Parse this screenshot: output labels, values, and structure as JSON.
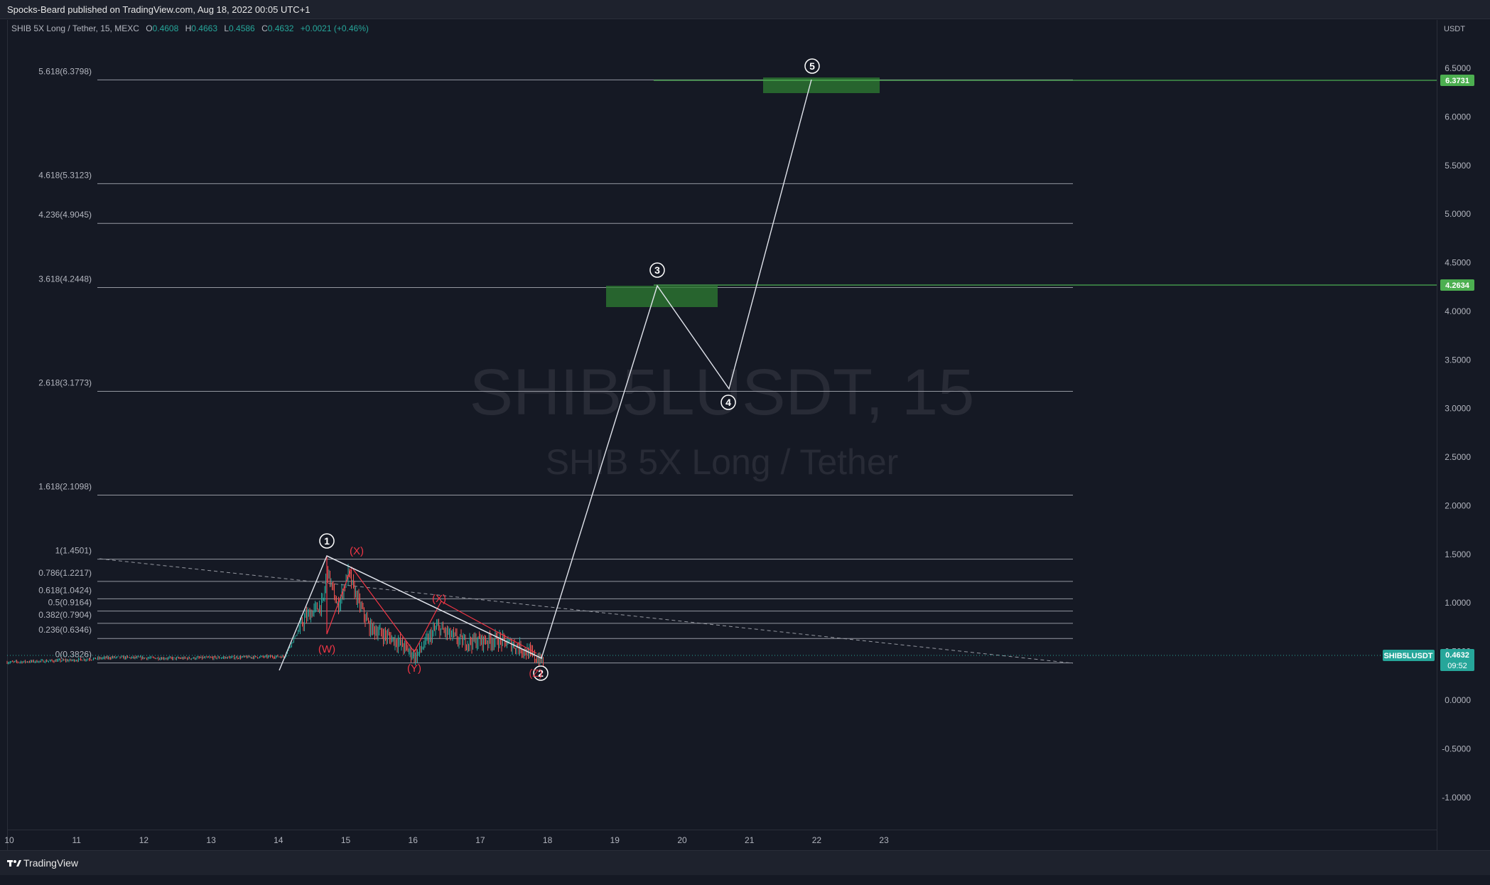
{
  "header": {
    "published_by": "Spocks-Beard published on TradingView.com, Aug 18, 2022 00:05 UTC+1"
  },
  "legend": {
    "symbol_label": "SHIB 5X Long / Tether, 15, MEXC",
    "open_key": "O",
    "open": "0.4608",
    "high_key": "H",
    "high": "0.4663",
    "low_key": "L",
    "low": "0.4586",
    "close_key": "C",
    "close": "0.4632",
    "change": "+0.0021 (+0.46%)"
  },
  "watermark": {
    "symbol": "SHIB5LUSDT, 15",
    "description": "SHIB 5X Long / Tether"
  },
  "price_axis": {
    "currency": "USDT",
    "ticks": [
      "6.5000",
      "6.0000",
      "5.5000",
      "5.0000",
      "4.5000",
      "4.0000",
      "3.5000",
      "3.0000",
      "2.5000",
      "2.0000",
      "1.5000",
      "1.0000",
      "0.5000",
      "0.0000",
      "-0.5000",
      "-1.0000"
    ],
    "badges": {
      "top_target": "6.3731",
      "mid_target": "4.2634",
      "symbol": "SHIB5LUSDT",
      "last_price": "0.4632",
      "countdown": "09:52"
    }
  },
  "time_axis": {
    "ticks": [
      "10",
      "11",
      "12",
      "13",
      "14",
      "15",
      "16",
      "17",
      "18",
      "19",
      "20",
      "21",
      "22",
      "23"
    ]
  },
  "fib_levels": [
    {
      "label": "5.618(6.3798)",
      "value": 6.3798
    },
    {
      "label": "4.618(5.3123)",
      "value": 5.3123
    },
    {
      "label": "4.236(4.9045)",
      "value": 4.9045
    },
    {
      "label": "3.618(4.2448)",
      "value": 4.2448
    },
    {
      "label": "2.618(3.1773)",
      "value": 3.1773
    },
    {
      "label": "1.618(2.1098)",
      "value": 2.1098
    },
    {
      "label": "1(1.4501)",
      "value": 1.4501
    },
    {
      "label": "0.786(1.2217)",
      "value": 1.2217
    },
    {
      "label": "0.618(1.0424)",
      "value": 1.0424
    },
    {
      "label": "0.5(0.9164)",
      "value": 0.9164
    },
    {
      "label": "0.382(0.7904)",
      "value": 0.7904
    },
    {
      "label": "0.236(0.6346)",
      "value": 0.6346
    },
    {
      "label": "0(0.3826)",
      "value": 0.3826
    }
  ],
  "wave_labels": {
    "w1": "1",
    "w2": "2",
    "w3": "3",
    "w4": "4",
    "w5": "5",
    "W": "(W)",
    "X1": "(X)",
    "Y": "(Y)",
    "X2": "(X)",
    "Z": "(Z)"
  },
  "footer": {
    "brand": "TradingView"
  },
  "colors": {
    "background": "#151924",
    "up": "#26a69a",
    "down": "#ef5350",
    "target_zone": "#2e7d32",
    "badge_green": "#4caf50",
    "wave_red": "#f23645"
  }
}
